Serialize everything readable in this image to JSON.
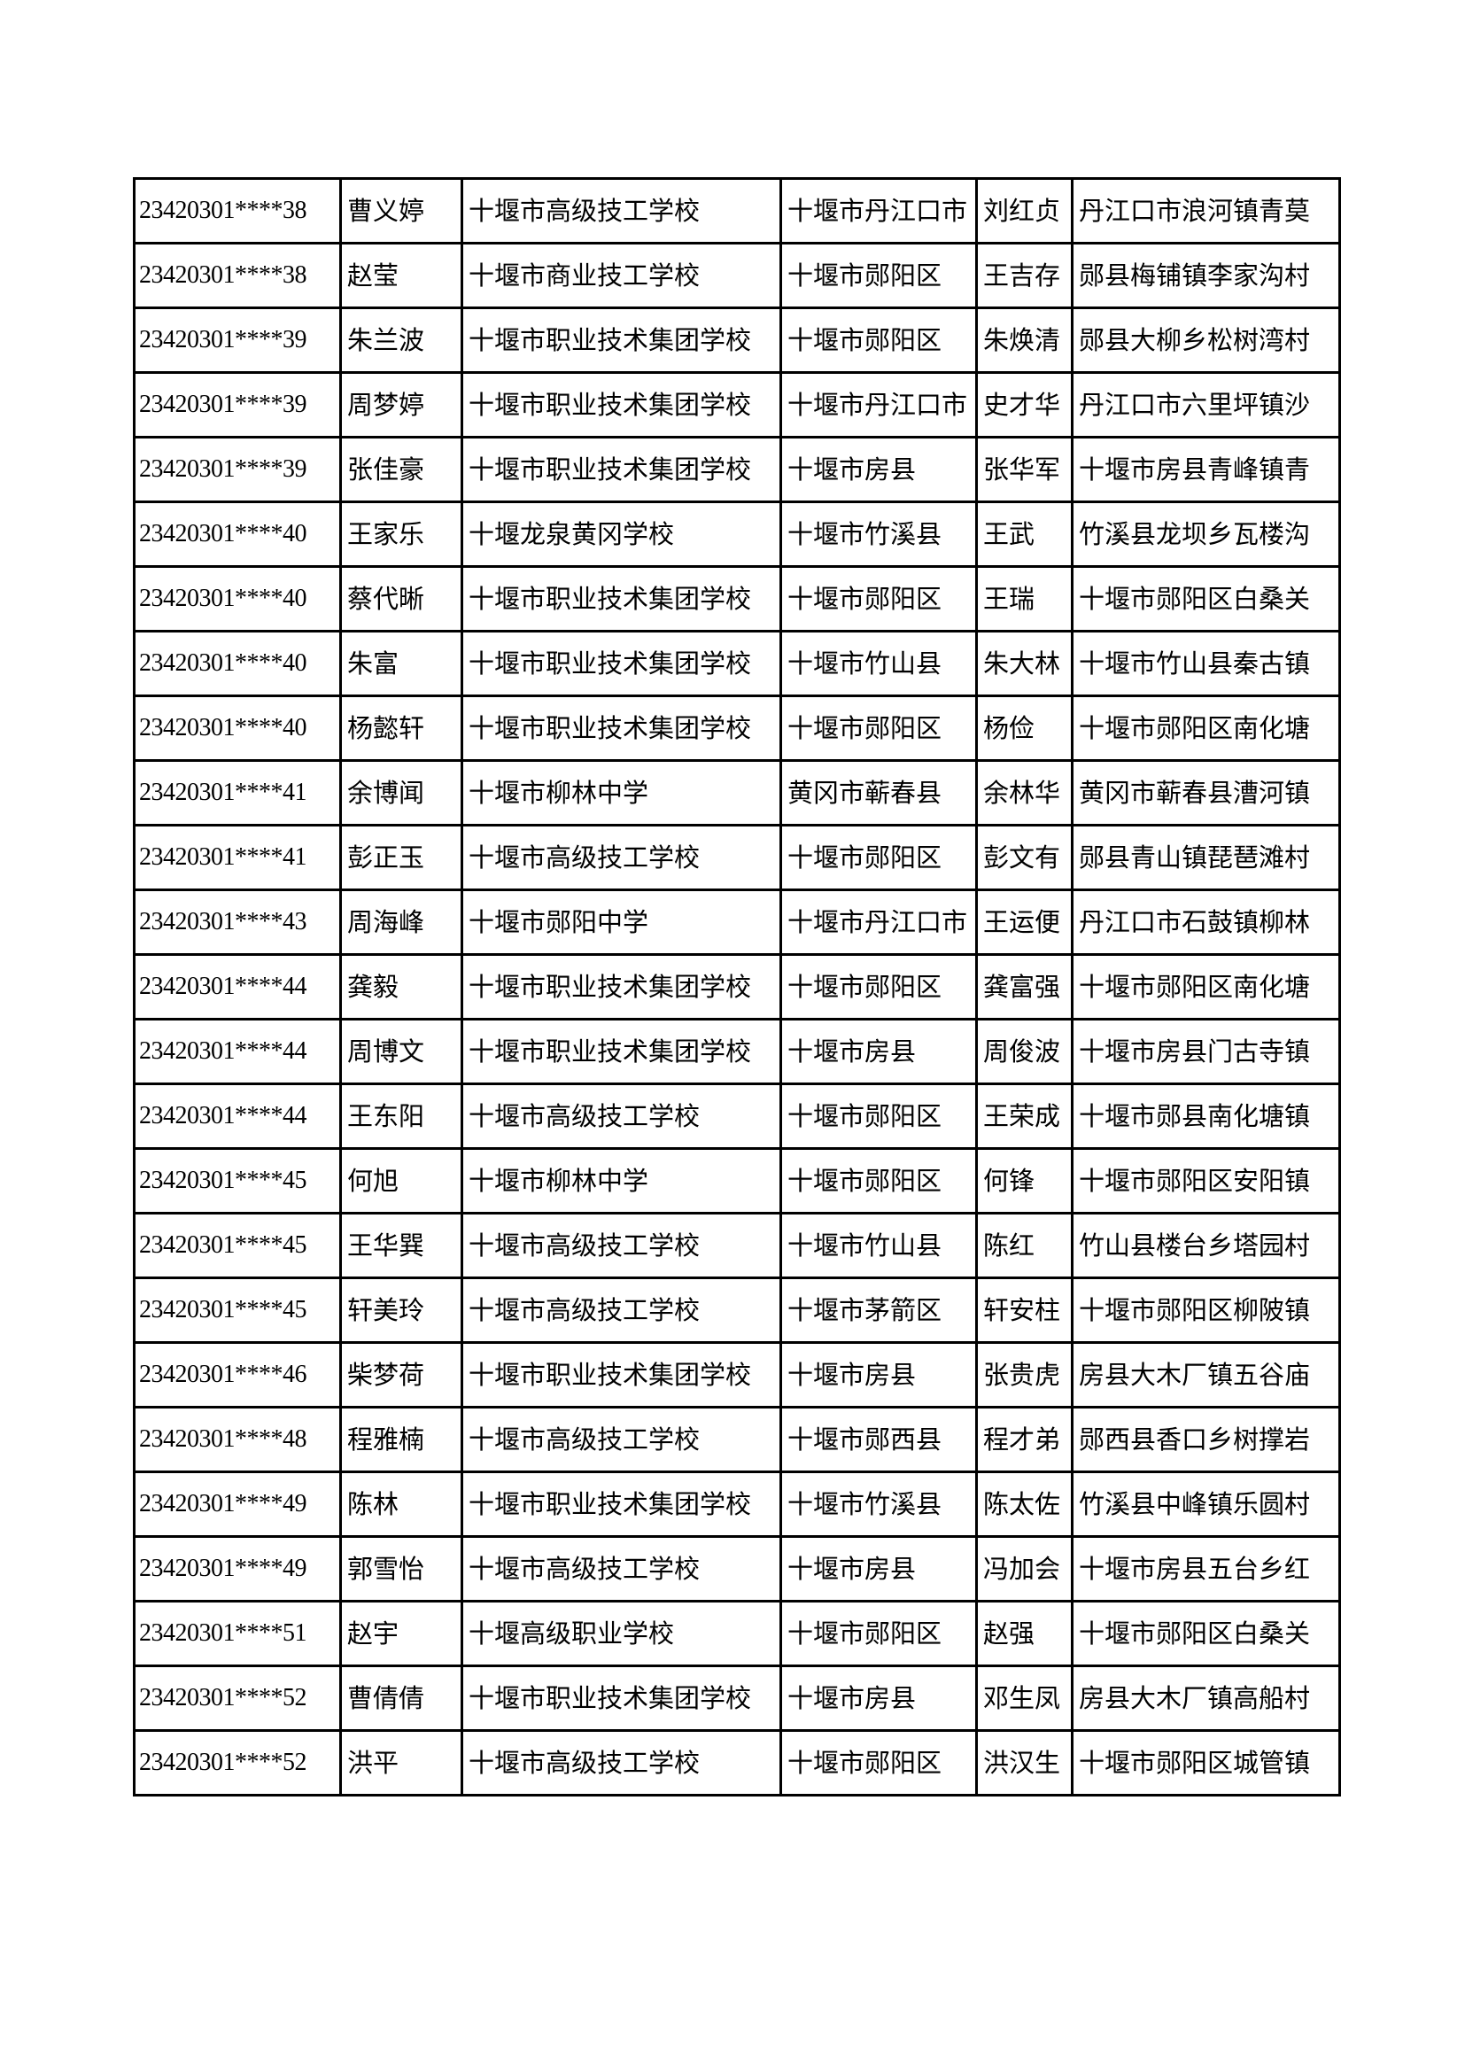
{
  "table": {
    "rows": [
      [
        "23420301****38",
        "曹义婷",
        "十堰市高级技工学校",
        "十堰市丹江口市",
        "刘红贞",
        "丹江口市浪河镇青莫"
      ],
      [
        "23420301****38",
        "赵莹",
        "十堰市商业技工学校",
        "十堰市郧阳区",
        "王吉存",
        "郧县梅铺镇李家沟村"
      ],
      [
        "23420301****39",
        "朱兰波",
        "十堰市职业技术集团学校",
        "十堰市郧阳区",
        "朱焕清",
        "郧县大柳乡松树湾村"
      ],
      [
        "23420301****39",
        "周梦婷",
        "十堰市职业技术集团学校",
        "十堰市丹江口市",
        "史才华",
        "丹江口市六里坪镇沙"
      ],
      [
        "23420301****39",
        "张佳豪",
        "十堰市职业技术集团学校",
        "十堰市房县",
        "张华军",
        "十堰市房县青峰镇青"
      ],
      [
        "23420301****40",
        "王家乐",
        "十堰龙泉黄冈学校",
        "十堰市竹溪县",
        "王武",
        "竹溪县龙坝乡瓦楼沟"
      ],
      [
        "23420301****40",
        "蔡代晰",
        "十堰市职业技术集团学校",
        "十堰市郧阳区",
        "王瑞",
        "十堰市郧阳区白桑关"
      ],
      [
        "23420301****40",
        "朱富",
        "十堰市职业技术集团学校",
        "十堰市竹山县",
        "朱大林",
        "十堰市竹山县秦古镇"
      ],
      [
        "23420301****40",
        "杨懿轩",
        "十堰市职业技术集团学校",
        "十堰市郧阳区",
        "杨俭",
        "十堰市郧阳区南化塘"
      ],
      [
        "23420301****41",
        "余博闻",
        "十堰市柳林中学",
        "黄冈市蕲春县",
        "余林华",
        "黄冈市蕲春县漕河镇"
      ],
      [
        "23420301****41",
        "彭正玉",
        "十堰市高级技工学校",
        "十堰市郧阳区",
        "彭文有",
        "郧县青山镇琵琶滩村"
      ],
      [
        "23420301****43",
        "周海峰",
        "十堰市郧阳中学",
        "十堰市丹江口市",
        "王运便",
        "丹江口市石鼓镇柳林"
      ],
      [
        "23420301****44",
        "龚毅",
        "十堰市职业技术集团学校",
        "十堰市郧阳区",
        "龚富强",
        "十堰市郧阳区南化塘"
      ],
      [
        "23420301****44",
        "周博文",
        "十堰市职业技术集团学校",
        "十堰市房县",
        "周俊波",
        "十堰市房县门古寺镇"
      ],
      [
        "23420301****44",
        "王东阳",
        "十堰市高级技工学校",
        "十堰市郧阳区",
        "王荣成",
        "十堰市郧县南化塘镇"
      ],
      [
        "23420301****45",
        "何旭",
        "十堰市柳林中学",
        "十堰市郧阳区",
        "何锋",
        "十堰市郧阳区安阳镇"
      ],
      [
        "23420301****45",
        "王华巽",
        "十堰市高级技工学校",
        "十堰市竹山县",
        "陈红",
        "竹山县楼台乡塔园村"
      ],
      [
        "23420301****45",
        "轩美玲",
        "十堰市高级技工学校",
        "十堰市茅箭区",
        "轩安柱",
        "十堰市郧阳区柳陂镇"
      ],
      [
        "23420301****46",
        "柴梦荷",
        "十堰市职业技术集团学校",
        "十堰市房县",
        "张贵虎",
        "房县大木厂镇五谷庙"
      ],
      [
        "23420301****48",
        "程雅楠",
        "十堰市高级技工学校",
        "十堰市郧西县",
        "程才弟",
        "郧西县香口乡树撑岩"
      ],
      [
        "23420301****49",
        "陈林",
        "十堰市职业技术集团学校",
        "十堰市竹溪县",
        "陈太佐",
        "竹溪县中峰镇乐圆村"
      ],
      [
        "23420301****49",
        "郭雪怡",
        "十堰市高级技工学校",
        "十堰市房县",
        "冯加会",
        "十堰市房县五台乡红"
      ],
      [
        "23420301****51",
        "赵宇",
        "十堰高级职业学校",
        "十堰市郧阳区",
        "赵强",
        "十堰市郧阳区白桑关"
      ],
      [
        "23420301****52",
        "曹倩倩",
        "十堰市职业技术集团学校",
        "十堰市房县",
        "邓生凤",
        "房县大木厂镇高船村"
      ],
      [
        "23420301****52",
        "洪平",
        "十堰市高级技工学校",
        "十堰市郧阳区",
        "洪汉生",
        "十堰市郧阳区城管镇"
      ]
    ]
  }
}
